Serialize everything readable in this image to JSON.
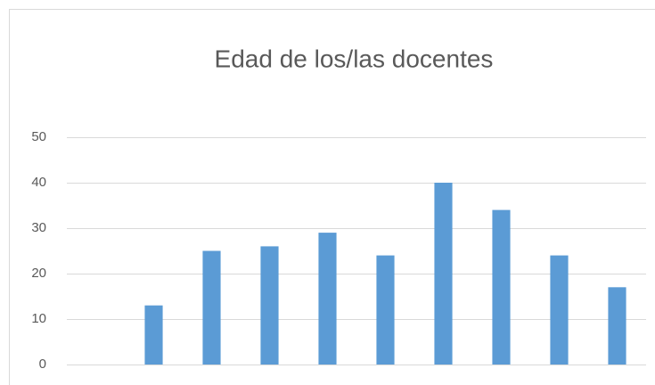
{
  "chart_data": {
    "type": "bar",
    "title": "Edad de los/las docentes",
    "categories": [
      null,
      null,
      null,
      null,
      null,
      null,
      null,
      null,
      null,
      null
    ],
    "values": [
      0,
      13,
      25,
      26,
      29,
      24,
      40,
      34,
      24,
      17
    ],
    "color": "#5b9bd5",
    "ylim": [
      0,
      50
    ],
    "yticks": [
      0,
      10,
      20,
      30,
      40,
      50
    ],
    "grid": true
  }
}
